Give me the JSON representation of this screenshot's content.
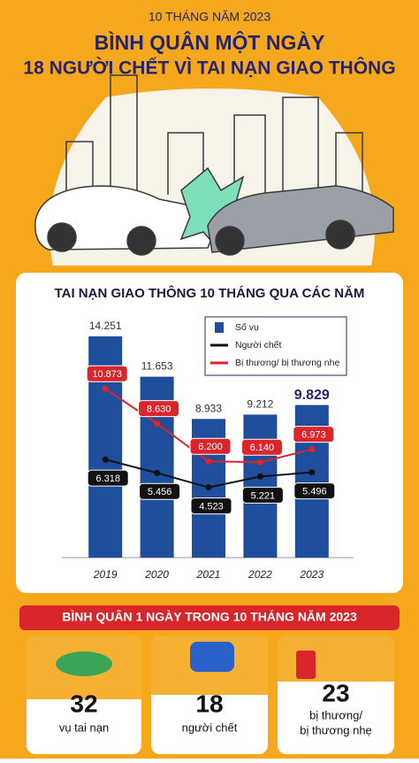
{
  "header": {
    "kicker": "10 THÁNG NĂM 2023",
    "title_line1": "BÌNH QUÂN MỘT NGÀY",
    "title_line2": "18 NGƯỜI CHẾT VÌ TAI NẠN GIAO THÔNG"
  },
  "chart_data": {
    "type": "bar",
    "title": "TAI NẠN GIAO THÔNG 10 THÁNG QUA CÁC NĂM",
    "categories": [
      "2019",
      "2020",
      "2021",
      "2022",
      "2023"
    ],
    "series": [
      {
        "name": "Số vụ",
        "type": "bar",
        "color": "#1f4e9c",
        "values": [
          14251,
          11653,
          8933,
          9212,
          9829
        ],
        "value_labels": [
          "14.251",
          "11.653",
          "8.933",
          "9.212",
          "9.829"
        ]
      },
      {
        "name": "Người chết",
        "type": "line",
        "color": "#111111",
        "values": [
          6318,
          5456,
          4523,
          5221,
          5496
        ],
        "value_labels": [
          "6.318",
          "5.456",
          "4.523",
          "5.221",
          "5.496"
        ]
      },
      {
        "name": "Bị thương/ bị thương nhẹ",
        "type": "line",
        "color": "#d9262b",
        "values": [
          10873,
          8630,
          6200,
          6140,
          6973
        ],
        "value_labels": [
          "10.873",
          "8.630",
          "6.200",
          "6.140",
          "6.973"
        ]
      }
    ]
  },
  "daily_average": {
    "title": "BÌNH QUÂN 1 NGÀY TRONG 10 THÁNG NĂM 2023",
    "items": [
      {
        "value": "32",
        "label": "vụ tai nạn"
      },
      {
        "value": "18",
        "label": "người chết"
      },
      {
        "value": "23",
        "label_line1": "bị thương/",
        "label_line2": "bị thương nhẹ"
      }
    ]
  }
}
